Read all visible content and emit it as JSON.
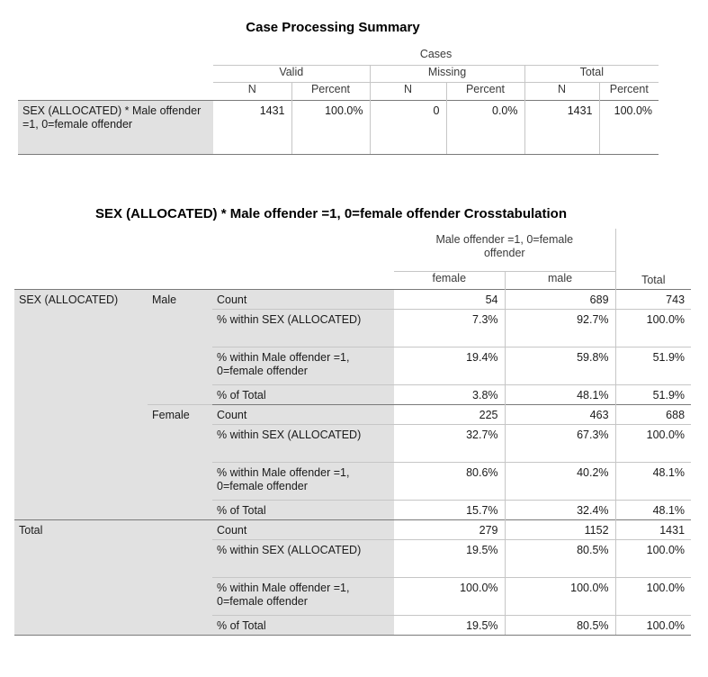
{
  "case_summary": {
    "title": "Case Processing Summary",
    "group_header": "Cases",
    "col_groups": [
      "Valid",
      "Missing",
      "Total"
    ],
    "col_n": "N",
    "col_percent": "Percent",
    "row_label": "SEX (ALLOCATED) * Male offender =1, 0=female offender",
    "values": [
      "1431",
      "100.0%",
      "0",
      "0.0%",
      "1431",
      "100.0%"
    ]
  },
  "crosstab": {
    "title": "SEX (ALLOCATED) * Male offender =1, 0=female offender Crosstabulation",
    "col_var": "Male offender =1, 0=female offender",
    "col_female": "female",
    "col_male": "male",
    "col_total": "Total",
    "row_var": "SEX (ALLOCATED)",
    "groups": [
      {
        "label": "Male",
        "rows": [
          {
            "stat": "Count",
            "female": "54",
            "male": "689",
            "total": "743"
          },
          {
            "stat": "% within SEX (ALLOCATED)",
            "female": "7.3%",
            "male": "92.7%",
            "total": "100.0%"
          },
          {
            "stat": "% within Male offender =1, 0=female offender",
            "female": "19.4%",
            "male": "59.8%",
            "total": "51.9%"
          },
          {
            "stat": "% of Total",
            "female": "3.8%",
            "male": "48.1%",
            "total": "51.9%"
          }
        ]
      },
      {
        "label": "Female",
        "rows": [
          {
            "stat": "Count",
            "female": "225",
            "male": "463",
            "total": "688"
          },
          {
            "stat": "% within SEX (ALLOCATED)",
            "female": "32.7%",
            "male": "67.3%",
            "total": "100.0%"
          },
          {
            "stat": "% within Male offender =1, 0=female offender",
            "female": "80.6%",
            "male": "40.2%",
            "total": "48.1%"
          },
          {
            "stat": "% of Total",
            "female": "15.7%",
            "male": "32.4%",
            "total": "48.1%"
          }
        ]
      }
    ],
    "total_label": "Total",
    "total_rows": [
      {
        "stat": "Count",
        "female": "279",
        "male": "1152",
        "total": "1431"
      },
      {
        "stat": "% within SEX (ALLOCATED)",
        "female": "19.5%",
        "male": "80.5%",
        "total": "100.0%"
      },
      {
        "stat": "% within Male offender =1, 0=female offender",
        "female": "100.0%",
        "male": "100.0%",
        "total": "100.0%"
      },
      {
        "stat": "% of Total",
        "female": "19.5%",
        "male": "80.5%",
        "total": "100.0%"
      }
    ]
  }
}
